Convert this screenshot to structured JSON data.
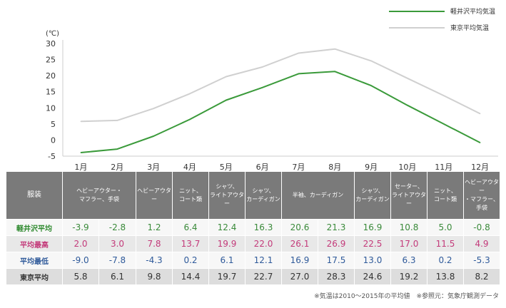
{
  "chart_data": {
    "type": "line",
    "unit_label": "(℃)",
    "categories": [
      "1月",
      "2月",
      "3月",
      "4月",
      "5月",
      "6月",
      "7月",
      "8月",
      "9月",
      "10月",
      "11月",
      "12月"
    ],
    "ylim": [
      -5,
      30
    ],
    "yticks": [
      "30",
      "25",
      "20",
      "15",
      "10",
      "5",
      "0",
      "-5"
    ],
    "ytick_values": [
      30,
      25,
      20,
      15,
      10,
      5,
      0,
      -5
    ],
    "series": [
      {
        "name": "軽井沢平均気温",
        "color": "#3a9a3a",
        "values": [
          -3.9,
          -2.8,
          1.2,
          6.4,
          12.4,
          16.3,
          20.6,
          21.3,
          16.9,
          10.8,
          5.0,
          -0.8
        ]
      },
      {
        "name": "東京平均気温",
        "color": "#d0d0d0",
        "values": [
          5.8,
          6.1,
          9.8,
          14.4,
          19.7,
          22.7,
          27.0,
          28.3,
          24.6,
          19.2,
          13.8,
          8.2
        ]
      }
    ]
  },
  "table": {
    "clothing_header": "服装",
    "clothing": [
      [
        "ヘビーアウター・",
        "マフラー、手袋"
      ],
      [
        "ヘビーアウター"
      ],
      [
        "ニット、",
        "コート類"
      ],
      [
        "シャツ、",
        "ライトアウター"
      ],
      [
        "シャツ、",
        "カーディガン"
      ],
      [
        "半袖、カーディガン"
      ],
      [
        "シャツ、",
        "カーディガン"
      ],
      [
        "セーター、",
        "ライトアウター"
      ],
      [
        "ニット、",
        "コート類"
      ],
      [
        "ヘビーアウター",
        "・マフラー、手袋"
      ]
    ],
    "rows": [
      {
        "label": "軽井沢平均",
        "values": [
          "-3.9",
          "-2.8",
          "1.2",
          "6.4",
          "12.4",
          "16.3",
          "20.6",
          "21.3",
          "16.9",
          "10.8",
          "5.0",
          "-0.8"
        ]
      },
      {
        "label": "平均最高",
        "values": [
          "2.0",
          "3.0",
          "7.8",
          "13.7",
          "19.9",
          "22.0",
          "26.1",
          "26.9",
          "22.5",
          "17.0",
          "11.5",
          "4.9"
        ]
      },
      {
        "label": "平均最低",
        "values": [
          "-9.0",
          "-7.8",
          "-4.3",
          "0.2",
          "6.1",
          "12.1",
          "16.9",
          "17.5",
          "13.0",
          "6.3",
          "0.2",
          "-5.3"
        ]
      },
      {
        "label": "東京平均",
        "values": [
          "5.8",
          "6.1",
          "9.8",
          "14.4",
          "19.7",
          "22.7",
          "27.0",
          "28.3",
          "24.6",
          "19.2",
          "13.8",
          "8.2"
        ]
      }
    ]
  },
  "note": "※気温は2010～2015年の平均値　※参照元：気象庁観測データ"
}
